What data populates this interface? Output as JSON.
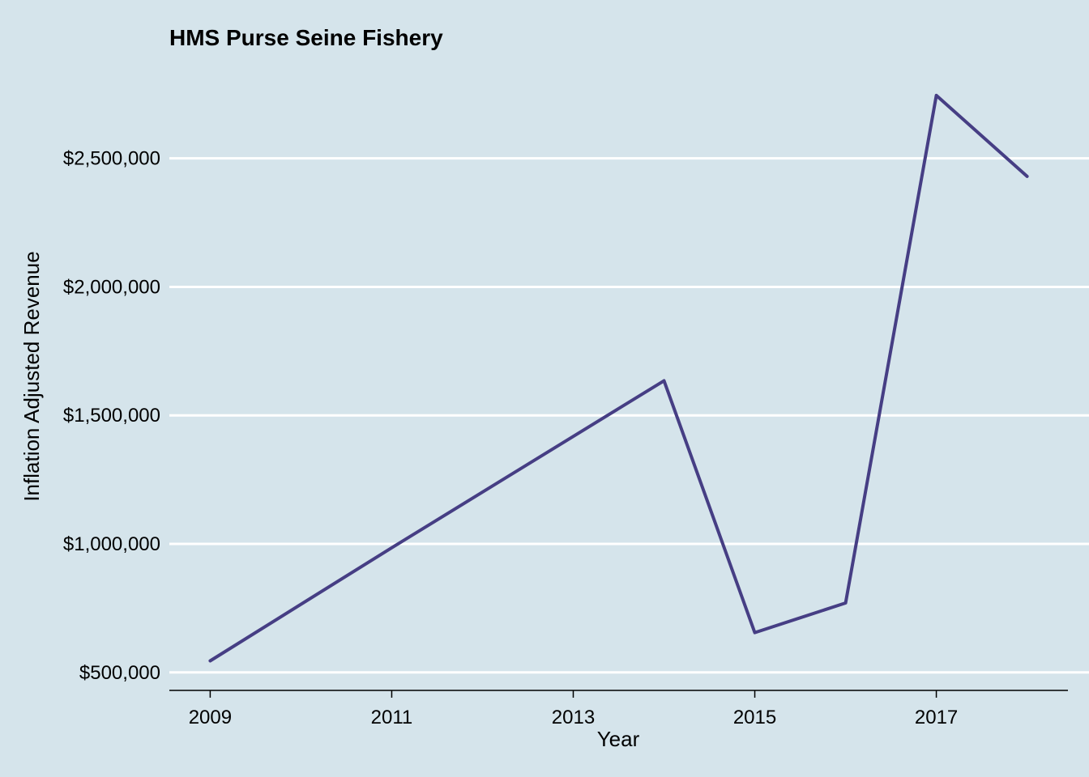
{
  "chart_data": {
    "type": "line",
    "title": "HMS Purse Seine Fishery",
    "xlabel": "Year",
    "ylabel": "Inflation Adjusted Revenue",
    "x": [
      2009,
      2011,
      2014,
      2015,
      2016,
      2017,
      2018
    ],
    "series": [
      {
        "name": "",
        "values": [
          545000,
          985000,
          1635000,
          655000,
          770000,
          2745000,
          2430000
        ],
        "color": "#463e84"
      }
    ],
    "x_ticks": [
      2009,
      2011,
      2013,
      2015,
      2017
    ],
    "x_tick_labels": [
      "2009",
      "2011",
      "2013",
      "2015",
      "2017"
    ],
    "y_ticks": [
      500000,
      1000000,
      1500000,
      2000000,
      2500000
    ],
    "y_tick_labels": [
      "$500,000",
      "$1,000,000",
      "$1,500,000",
      "$2,000,000",
      "$2,500,000"
    ],
    "xlim": [
      2008.55,
      2018.45
    ],
    "ylim": [
      430000,
      2880000
    ],
    "grid": "horizontal-major",
    "background_color": "#d5e4eb",
    "grid_color": "#ffffff"
  }
}
